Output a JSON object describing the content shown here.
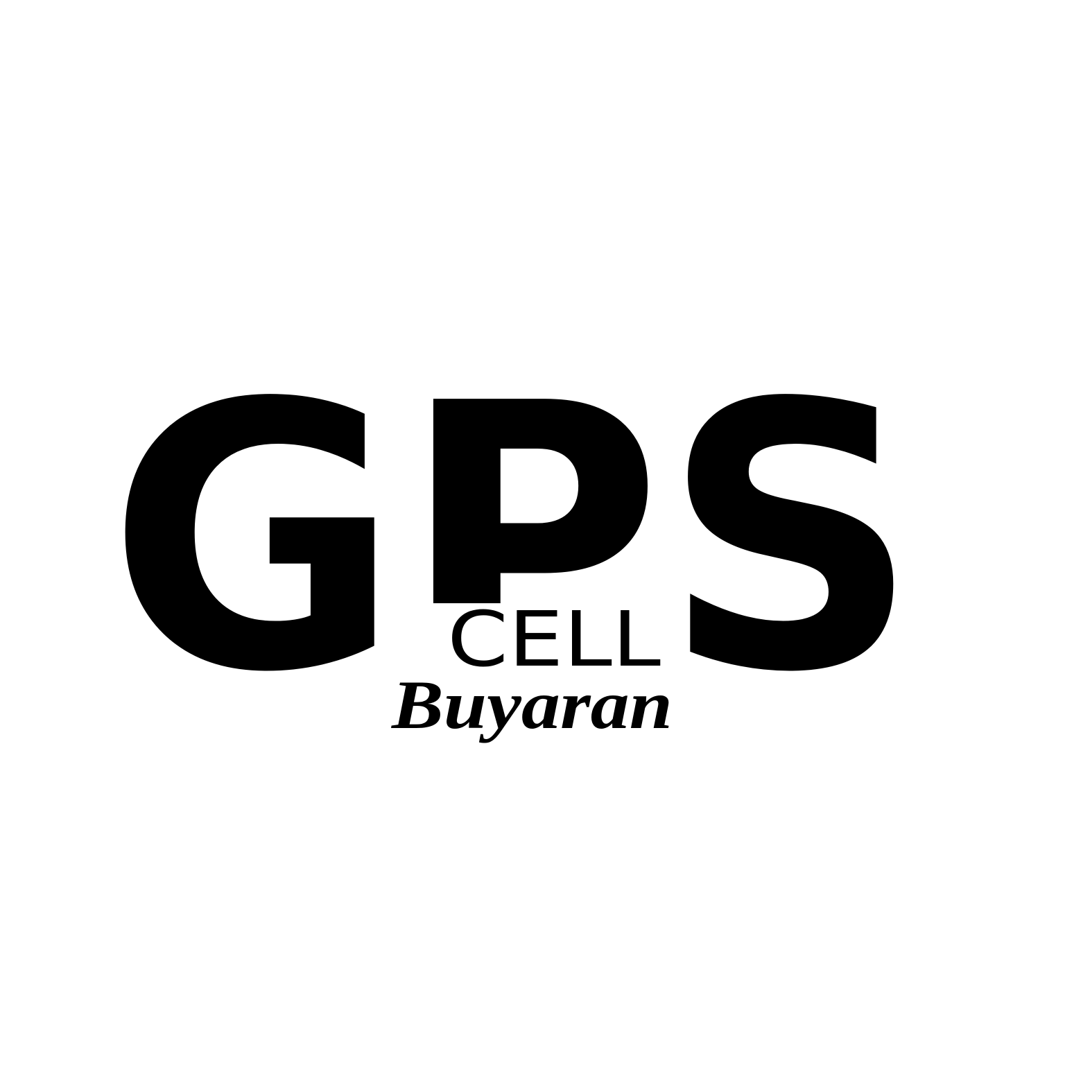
{
  "logo": {
    "wordmark": "GPS",
    "subword": "CELL",
    "tagline": "Buyaran"
  }
}
